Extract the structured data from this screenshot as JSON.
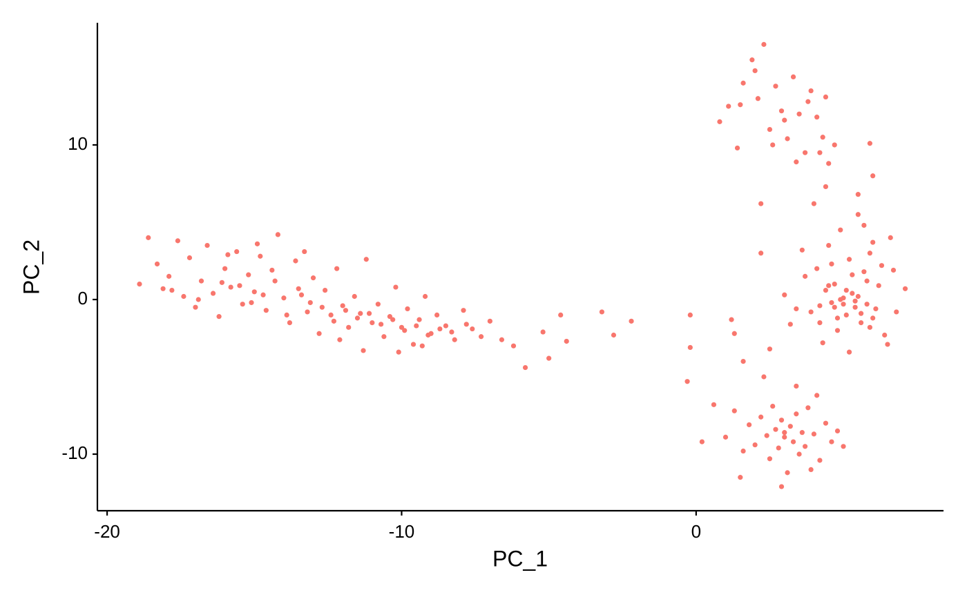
{
  "chart_data": {
    "type": "scatter",
    "x_label": "PC_1",
    "y_label": "PC_2",
    "color": "#F8766D",
    "xlim": [
      -20.33,
      8.4
    ],
    "xticks": [
      -20,
      -10,
      0
    ],
    "ylim": [
      -13.66,
      17.9
    ],
    "yticks": [
      -10,
      0,
      10
    ],
    "x": [
      -18.9,
      -18.6,
      -18.3,
      -18.1,
      -17.9,
      -17.6,
      -17.4,
      -17.2,
      -17.0,
      -16.8,
      -16.6,
      -16.4,
      -16.2,
      -16.0,
      -15.8,
      -15.6,
      -15.4,
      -15.2,
      -15.0,
      -14.8,
      -14.6,
      -14.4,
      -14.2,
      -14.0,
      -13.8,
      -13.6,
      -13.4,
      -13.2,
      -13.0,
      -12.8,
      -12.6,
      -12.4,
      -12.2,
      -12.0,
      -11.8,
      -11.6,
      -11.4,
      -11.2,
      -11.0,
      -10.8,
      -10.6,
      -10.4,
      -10.2,
      -10.0,
      -9.8,
      -9.6,
      -9.4,
      -9.2,
      -9.0,
      -8.8,
      -8.5,
      -8.2,
      -7.9,
      -7.6,
      -7.3,
      -7.0,
      -6.6,
      -6.2,
      -5.8,
      -5.2,
      -17.8,
      -16.9,
      -16.1,
      -15.5,
      -15.1,
      -14.7,
      -14.3,
      -13.9,
      -13.5,
      -13.1,
      -12.7,
      -12.3,
      -11.9,
      -11.5,
      -11.1,
      -10.7,
      -10.3,
      -9.9,
      -9.5,
      -9.1,
      -8.7,
      -8.3,
      -15.9,
      -14.9,
      -13.3,
      -12.1,
      -11.3,
      -10.1,
      -9.3,
      -7.8,
      -5.0,
      -4.6,
      -4.4,
      -3.2,
      -2.8,
      -2.2,
      -0.2,
      -0.2,
      -0.3,
      0.2,
      1.2,
      1.3,
      1.6,
      2.2,
      2.5,
      0.8,
      1.1,
      1.4,
      1.6,
      1.9,
      2.1,
      2.3,
      2.5,
      2.7,
      2.9,
      3.1,
      3.3,
      3.5,
      3.7,
      3.9,
      4.1,
      4.3,
      4.5,
      4.7,
      1.5,
      2.2,
      2.6,
      3.0,
      3.4,
      3.8,
      4.2,
      2.0,
      5.9,
      6.0,
      4.4,
      3.0,
      3.4,
      3.7,
      3.9,
      4.1,
      4.2,
      4.4,
      4.5,
      4.6,
      4.7,
      4.8,
      4.9,
      5.0,
      5.1,
      5.2,
      5.3,
      5.4,
      5.5,
      5.6,
      5.7,
      5.8,
      5.9,
      6.0,
      6.2,
      6.4,
      6.6,
      6.8,
      7.1,
      4.0,
      4.3,
      4.6,
      4.9,
      5.2,
      5.5,
      5.8,
      6.1,
      4.5,
      5.0,
      5.3,
      5.6,
      6.3,
      4.8,
      5.1,
      5.4,
      3.6,
      4.2,
      6.5,
      5.7,
      4.4,
      5.9,
      6.7,
      3.2,
      4.7,
      5.5,
      6.0,
      0.6,
      1.0,
      1.3,
      1.6,
      1.8,
      2.0,
      2.2,
      2.4,
      2.5,
      2.6,
      2.7,
      2.8,
      2.9,
      3.0,
      3.1,
      3.2,
      3.3,
      3.4,
      3.5,
      3.6,
      3.7,
      3.8,
      4.0,
      4.2,
      4.4,
      4.6,
      4.8,
      5.0,
      2.3,
      2.9,
      3.4,
      3.9,
      4.1,
      1.5,
      3.0
    ],
    "values": [
      1.0,
      4.0,
      2.3,
      0.7,
      1.5,
      3.8,
      0.2,
      2.7,
      -0.5,
      1.2,
      3.5,
      0.4,
      -1.1,
      2.0,
      0.8,
      3.1,
      -0.3,
      1.6,
      0.5,
      2.8,
      -0.7,
      1.9,
      4.2,
      0.1,
      -1.5,
      2.5,
      0.3,
      -0.8,
      1.4,
      -2.2,
      0.6,
      -1.0,
      2.0,
      -0.4,
      -1.8,
      0.2,
      -0.9,
      2.6,
      -1.5,
      -0.3,
      -2.4,
      -1.1,
      0.8,
      -1.8,
      -0.6,
      -2.9,
      -1.3,
      0.2,
      -2.2,
      -1.0,
      -1.7,
      -2.6,
      -0.7,
      -1.9,
      -2.4,
      -1.4,
      -2.6,
      -3.0,
      -4.4,
      -2.1,
      0.6,
      0.0,
      1.1,
      0.9,
      -0.2,
      0.3,
      1.2,
      -1.0,
      0.7,
      -0.2,
      -0.5,
      -1.4,
      -0.7,
      -1.2,
      -0.9,
      -1.6,
      -1.3,
      -2.0,
      -1.7,
      -2.3,
      -1.9,
      -2.1,
      2.9,
      3.6,
      3.1,
      -2.6,
      -3.3,
      -3.4,
      -3.0,
      -1.6,
      -3.8,
      -1.0,
      -2.7,
      -0.8,
      -2.3,
      -1.4,
      -1.0,
      -3.1,
      -5.3,
      -9.2,
      -1.3,
      -2.2,
      -4.0,
      3.0,
      -3.2,
      11.5,
      12.5,
      9.8,
      14.0,
      15.5,
      13.0,
      16.5,
      11.0,
      13.8,
      12.2,
      10.4,
      14.4,
      12.0,
      9.5,
      13.5,
      11.8,
      10.5,
      8.8,
      10.0,
      12.6,
      6.2,
      10.0,
      11.6,
      8.9,
      12.8,
      9.5,
      14.8,
      10.1,
      8.0,
      13.1,
      0.3,
      -0.6,
      1.5,
      -0.8,
      2.0,
      -1.5,
      0.6,
      3.5,
      -0.2,
      1.0,
      -2.0,
      4.5,
      0.1,
      -1.0,
      2.6,
      0.4,
      -0.5,
      5.5,
      -1.5,
      1.8,
      -0.3,
      3.0,
      -1.2,
      0.9,
      -2.3,
      4.0,
      -0.8,
      0.7,
      6.2,
      -2.8,
      2.3,
      0.0,
      -3.4,
      6.8,
      1.2,
      -0.6,
      0.9,
      -0.3,
      1.6,
      -0.9,
      2.2,
      -1.2,
      0.6,
      -0.1,
      3.2,
      -0.4,
      -2.9,
      4.8,
      7.3,
      -1.8,
      1.9,
      -1.6,
      -0.5,
      0.2,
      3.7,
      -6.8,
      -8.9,
      -7.2,
      -9.8,
      -8.1,
      -9.4,
      -7.6,
      -8.8,
      -10.3,
      -6.9,
      -8.4,
      -9.6,
      -7.8,
      -8.9,
      -11.2,
      -8.2,
      -9.2,
      -7.4,
      -10.0,
      -8.6,
      -9.5,
      -7.0,
      -8.7,
      -10.4,
      -8.0,
      -9.2,
      -8.5,
      -9.5,
      -5.0,
      -12.1,
      -5.6,
      -11.0,
      -6.2,
      -11.5,
      -8.6
    ]
  }
}
